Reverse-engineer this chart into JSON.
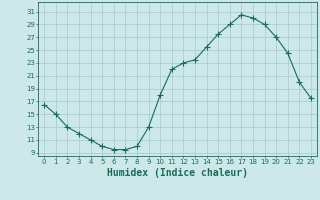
{
  "x": [
    0,
    1,
    2,
    3,
    4,
    5,
    6,
    7,
    8,
    9,
    10,
    11,
    12,
    13,
    14,
    15,
    16,
    17,
    18,
    19,
    20,
    21,
    22,
    23
  ],
  "y": [
    16.5,
    15.0,
    13.0,
    12.0,
    11.0,
    10.0,
    9.5,
    9.5,
    10.0,
    13.0,
    18.0,
    22.0,
    23.0,
    23.5,
    25.5,
    27.5,
    29.0,
    30.5,
    30.0,
    29.0,
    27.0,
    24.5,
    20.0,
    17.5
  ],
  "line_color": "#1a6b5a",
  "marker": "+",
  "marker_size": 4,
  "xlabel": "Humidex (Indice chaleur)",
  "xlabel_fontsize": 7,
  "ylabel_ticks": [
    9,
    11,
    13,
    15,
    17,
    19,
    21,
    23,
    25,
    27,
    29,
    31
  ],
  "xlim": [
    -0.5,
    23.5
  ],
  "ylim": [
    8.5,
    32.5
  ],
  "bg_color": "#cce8e8",
  "grid_color": "#aacece",
  "tick_color": "#1a6b5a",
  "tick_fontsize": 5,
  "figwidth": 3.2,
  "figheight": 2.0,
  "dpi": 100
}
